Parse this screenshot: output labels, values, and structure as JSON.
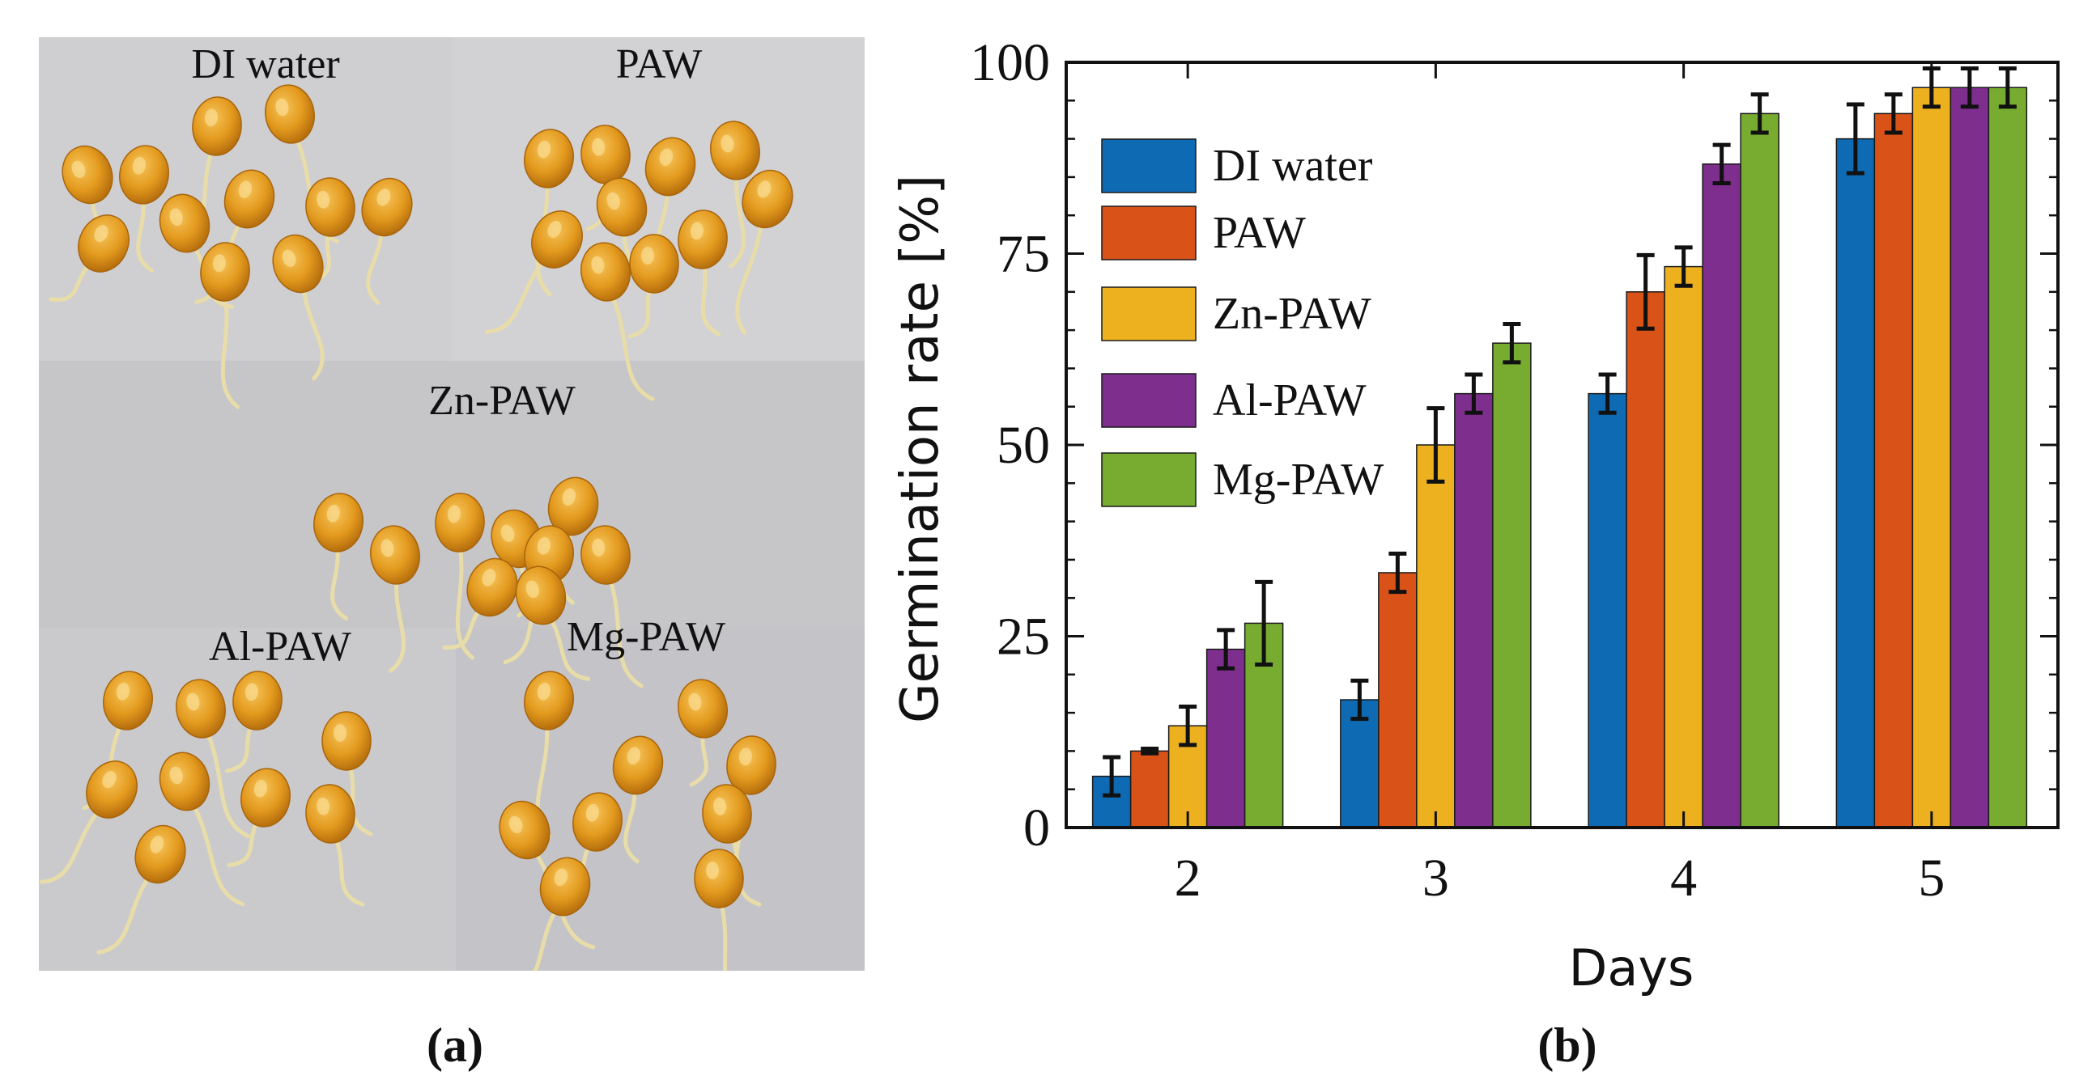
{
  "panel_a": {
    "caption": "(a)",
    "labels": {
      "di": "DI water",
      "paw": "PAW",
      "zn": "Zn-PAW",
      "al": "Al-PAW",
      "mg": "Mg-PAW"
    }
  },
  "panel_b": {
    "caption": "(b)"
  },
  "chart_data": {
    "type": "bar",
    "title": "",
    "xlabel": "Days",
    "ylabel": "Germination rate [%]",
    "categories": [
      "2",
      "3",
      "4",
      "5"
    ],
    "ylim": [
      0,
      100
    ],
    "yticks": [
      "0",
      "25",
      "50",
      "75",
      "100"
    ],
    "legend_position": "top-left",
    "series": [
      {
        "name": "DI water",
        "color": "#0F6AB4",
        "values": [
          6.7,
          16.7,
          56.7,
          90.0
        ],
        "errors": [
          2.5,
          2.5,
          2.5,
          4.5
        ]
      },
      {
        "name": "PAW",
        "color": "#D95319",
        "values": [
          10.0,
          33.3,
          70.0,
          93.3
        ],
        "errors": [
          0.3,
          2.5,
          4.8,
          2.5
        ]
      },
      {
        "name": "Zn-PAW",
        "color": "#EDB120",
        "values": [
          13.3,
          50.0,
          73.3,
          96.7
        ],
        "errors": [
          2.5,
          4.8,
          2.5,
          2.5
        ]
      },
      {
        "name": "Al-PAW",
        "color": "#7E2F8E",
        "values": [
          23.3,
          56.7,
          86.7,
          96.7
        ],
        "errors": [
          2.5,
          2.5,
          2.5,
          2.5
        ]
      },
      {
        "name": "Mg-PAW",
        "color": "#77AC30",
        "values": [
          26.7,
          63.3,
          93.3,
          96.7
        ],
        "errors": [
          5.4,
          2.5,
          2.5,
          2.5
        ]
      }
    ]
  }
}
